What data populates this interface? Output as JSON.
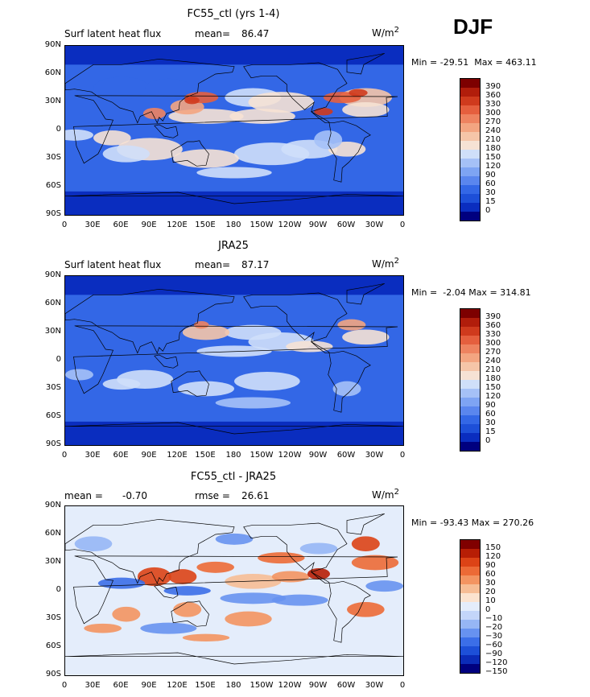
{
  "season": "DJF",
  "units": "W/m",
  "units_exp": "2",
  "axes": {
    "lat_labels": [
      "90N",
      "60N",
      "30N",
      "0",
      "30S",
      "60S",
      "90S"
    ],
    "lon_labels": [
      "0",
      "30E",
      "60E",
      "90E",
      "120E",
      "150E",
      "180",
      "150W",
      "120W",
      "90W",
      "60W",
      "30W",
      "0"
    ]
  },
  "colormaps": {
    "field": [
      "#00007f",
      "#0a2dbf",
      "#1d4fd8",
      "#3367e6",
      "#5a86ee",
      "#7ea4f3",
      "#a5c1f7",
      "#cfdff9",
      "#f6e2d4",
      "#f5c5a8",
      "#f3a581",
      "#ee8360",
      "#e55f3e",
      "#cf3a1d",
      "#b11d0b",
      "#7d0000"
    ],
    "diff": [
      "#00007f",
      "#0b2bb8",
      "#1d4fd8",
      "#3b6ee8",
      "#6792f0",
      "#96b6f5",
      "#c3d5f9",
      "#e4edfb",
      "#fbe3cf",
      "#f6bd95",
      "#f39461",
      "#ec6a36",
      "#dc4316",
      "#b71e05",
      "#800000"
    ]
  },
  "panels": [
    {
      "title": "FC55_ctl (yrs 1-4)",
      "left_label": "Surf latent heat flux",
      "stat_label": "mean=",
      "stat_value": "86.47",
      "min_label": "Min =",
      "min_value": "-29.51",
      "max_label": "Max =",
      "max_value": "463.11"
    },
    {
      "title": "JRA25",
      "left_label": "Surf latent heat flux",
      "stat_label": "mean=",
      "stat_value": "87.17",
      "min_label": "Min =",
      "min_value": "-2.04",
      "max_label": "Max =",
      "max_value": "314.81"
    },
    {
      "title": "FC55_ctl - JRA25",
      "left_label": "mean =",
      "left_value": "-0.70",
      "stat_label": "rmse =",
      "stat_value": "26.61",
      "min_label": "Min =",
      "min_value": "-93.43",
      "max_label": "Max =",
      "max_value": "270.26"
    }
  ],
  "chart_data": [
    {
      "type": "heatmap",
      "title": "FC55_ctl (yrs 1-4)",
      "subtitle": "Surf latent heat flux",
      "units": "W/m2",
      "mean": 86.47,
      "min": -29.51,
      "max": 463.11,
      "colorbar_levels": [
        "390",
        "360",
        "330",
        "300",
        "270",
        "240",
        "210",
        "180",
        "150",
        "120",
        "90",
        "60",
        "30",
        "15",
        "0"
      ],
      "x_range": [
        0,
        360
      ],
      "y_range": [
        -90,
        90
      ]
    },
    {
      "type": "heatmap",
      "title": "JRA25",
      "subtitle": "Surf latent heat flux",
      "units": "W/m2",
      "mean": 87.17,
      "min": -2.04,
      "max": 314.81,
      "colorbar_levels": [
        "390",
        "360",
        "330",
        "300",
        "270",
        "240",
        "210",
        "180",
        "150",
        "120",
        "90",
        "60",
        "30",
        "15",
        "0"
      ],
      "x_range": [
        0,
        360
      ],
      "y_range": [
        -90,
        90
      ]
    },
    {
      "type": "heatmap",
      "title": "FC55_ctl - JRA25",
      "units": "W/m2",
      "mean": -0.7,
      "rmse": 26.61,
      "min": -93.43,
      "max": 270.26,
      "colorbar_levels": [
        "150",
        "120",
        "90",
        "60",
        "30",
        "20",
        "10",
        "0",
        "−10",
        "−20",
        "−30",
        "−60",
        "−90",
        "−120",
        "−150"
      ],
      "x_range": [
        0,
        360
      ],
      "y_range": [
        -90,
        90
      ]
    }
  ]
}
